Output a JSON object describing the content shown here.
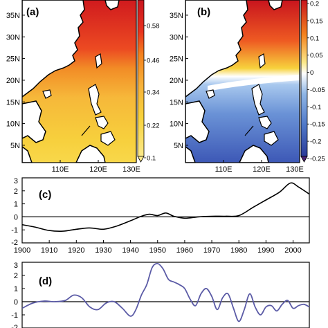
{
  "colors": {
    "red_dark": "#c8141e",
    "red": "#e8321e",
    "orange": "#f4821e",
    "yellow": "#f7d23c",
    "yellow_light": "#fbe98a",
    "white": "#ffffff",
    "blue_light": "#8fb6e6",
    "blue": "#4f78c8",
    "blue_dark": "#2a3a98",
    "purple": "#4a2070",
    "curve_d": "#5b5ba6"
  },
  "chart_data": [
    {
      "panel": "(a)",
      "type": "heatmap",
      "title": "",
      "x_ticks": [
        "110E",
        "120E",
        "130E"
      ],
      "y_ticks": [
        "35N",
        "30N",
        "25N",
        "20N",
        "15N",
        "10N",
        "5N"
      ],
      "colorbar_labels": [
        "0.58",
        "0.46",
        "0.34",
        "0.22",
        "0.1"
      ]
    },
    {
      "panel": "(b)",
      "type": "heatmap",
      "title": "",
      "x_ticks": [
        "110E",
        "120E",
        "130E"
      ],
      "y_ticks": [
        "35N",
        "30N",
        "25N",
        "20N",
        "15N",
        "10N",
        "5N"
      ],
      "colorbar_labels": [
        "0.2",
        "0.15",
        "0.1",
        "0.05",
        "0",
        "-0.05",
        "-0.1",
        "-0.15",
        "-0.2",
        "-0.25"
      ]
    },
    {
      "panel": "(c)",
      "type": "line",
      "title": "",
      "xlabel": "",
      "ylabel": "",
      "xlim": [
        1900,
        2006
      ],
      "ylim": [
        -2,
        3
      ],
      "x_ticks": [
        "1900",
        "1910",
        "1920",
        "1930",
        "1940",
        "1950",
        "1960",
        "1970",
        "1980",
        "1990",
        "2000"
      ],
      "y_ticks": [
        "3",
        "2",
        "1",
        "0",
        "-1",
        "-2"
      ],
      "x": [
        1900,
        1905,
        1910,
        1915,
        1920,
        1925,
        1930,
        1935,
        1940,
        1944,
        1947,
        1950,
        1953,
        1956,
        1960,
        1965,
        1970,
        1975,
        1980,
        1985,
        1990,
        1995,
        1999,
        2002,
        2006
      ],
      "values": [
        -0.6,
        -0.8,
        -1.05,
        -1.1,
        -0.95,
        -0.85,
        -0.95,
        -0.7,
        -0.3,
        0.05,
        0.2,
        0.1,
        0.3,
        0.05,
        -0.1,
        0.0,
        0.05,
        0.05,
        0.1,
        0.7,
        1.3,
        1.9,
        2.6,
        2.3,
        1.75
      ]
    },
    {
      "panel": "(d)",
      "type": "line",
      "title": "",
      "xlabel": "",
      "ylabel": "",
      "xlim": [
        1900,
        2006
      ],
      "ylim": [
        -2,
        3
      ],
      "y_ticks": [
        "3",
        "2",
        "1",
        "0",
        "-1",
        "-2"
      ],
      "x": [
        1900,
        1904,
        1908,
        1912,
        1916,
        1919,
        1922,
        1925,
        1928,
        1931,
        1934,
        1937,
        1940,
        1942,
        1944,
        1946,
        1948,
        1950,
        1952,
        1954,
        1956,
        1958,
        1960,
        1962,
        1964,
        1966,
        1968,
        1970,
        1972,
        1974,
        1976,
        1978,
        1980,
        1982,
        1984,
        1986,
        1988,
        1990,
        1992,
        1994,
        1996,
        1998,
        2000,
        2002,
        2004,
        2006
      ],
      "values": [
        -0.5,
        -0.1,
        0.05,
        0.0,
        0.1,
        0.5,
        0.3,
        -0.4,
        -0.6,
        -0.1,
        0.0,
        -0.5,
        -1.1,
        -0.6,
        0.5,
        1.3,
        2.6,
        2.9,
        2.5,
        1.7,
        1.5,
        1.3,
        1.0,
        0.2,
        -0.3,
        0.6,
        1.0,
        0.4,
        -0.6,
        0.3,
        0.6,
        -0.5,
        -1.5,
        -0.6,
        0.6,
        -0.4,
        -1.0,
        -0.4,
        -0.3,
        -0.7,
        -0.2,
        0.1,
        -0.5,
        -0.3,
        -0.2,
        -0.4
      ]
    }
  ]
}
